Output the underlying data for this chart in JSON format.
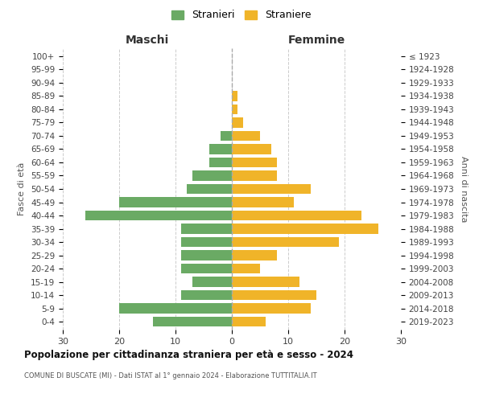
{
  "age_groups": [
    "0-4",
    "5-9",
    "10-14",
    "15-19",
    "20-24",
    "25-29",
    "30-34",
    "35-39",
    "40-44",
    "45-49",
    "50-54",
    "55-59",
    "60-64",
    "65-69",
    "70-74",
    "75-79",
    "80-84",
    "85-89",
    "90-94",
    "95-99",
    "100+"
  ],
  "birth_years": [
    "2019-2023",
    "2014-2018",
    "2009-2013",
    "2004-2008",
    "1999-2003",
    "1994-1998",
    "1989-1993",
    "1984-1988",
    "1979-1983",
    "1974-1978",
    "1969-1973",
    "1964-1968",
    "1959-1963",
    "1954-1958",
    "1949-1953",
    "1944-1948",
    "1939-1943",
    "1934-1938",
    "1929-1933",
    "1924-1928",
    "≤ 1923"
  ],
  "maschi": [
    14,
    20,
    9,
    7,
    9,
    9,
    9,
    9,
    26,
    20,
    8,
    7,
    4,
    4,
    2,
    0,
    0,
    0,
    0,
    0,
    0
  ],
  "femmine": [
    6,
    14,
    15,
    12,
    5,
    8,
    19,
    26,
    23,
    11,
    14,
    8,
    8,
    7,
    5,
    2,
    1,
    1,
    0,
    0,
    0
  ],
  "male_color": "#6aaa64",
  "female_color": "#f0b429",
  "title": "Popolazione per cittadinanza straniera per età e sesso - 2024",
  "subtitle": "COMUNE DI BUSCATE (MI) - Dati ISTAT al 1° gennaio 2024 - Elaborazione TUTTITALIA.IT",
  "legend_male": "Stranieri",
  "legend_female": "Straniere",
  "xlabel_left": "Maschi",
  "xlabel_right": "Femmine",
  "ylabel_left": "Fasce di età",
  "ylabel_right": "Anni di nascita",
  "xlim": 30,
  "background_color": "#ffffff",
  "grid_color": "#cccccc"
}
